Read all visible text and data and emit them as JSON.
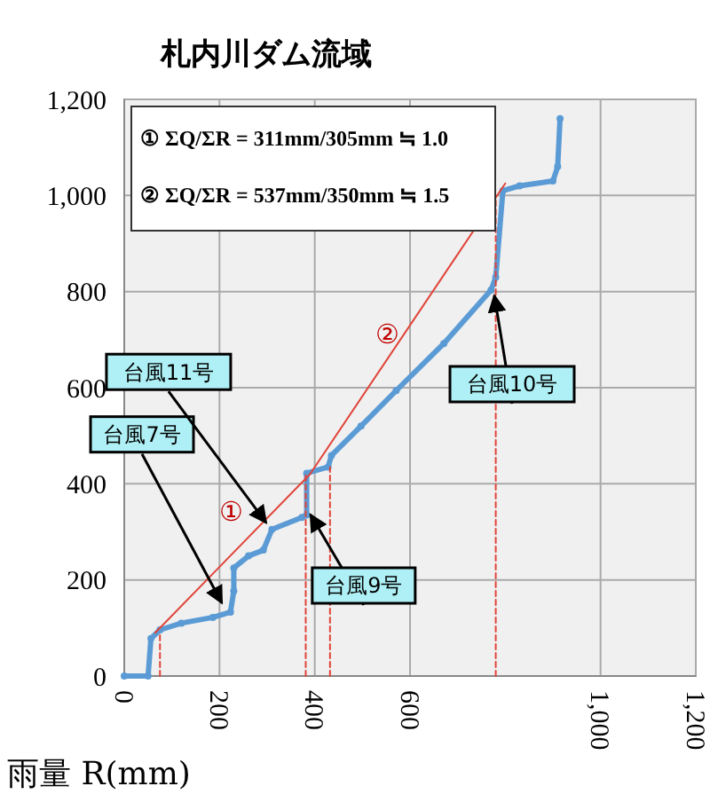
{
  "chart_data": {
    "type": "line",
    "title": "札内川ダム流域",
    "xlabel": "雨量 R(mm)",
    "xlim": [
      0,
      1200
    ],
    "xticks": [
      0,
      200,
      400,
      600,
      {
        "value": 1000,
        "label": "1,000"
      },
      {
        "value": 1200,
        "label": "1,200"
      }
    ],
    "ylim": [
      0,
      1200
    ],
    "yticks": [
      0,
      200,
      400,
      600,
      800,
      {
        "value": 1000,
        "label": "1,000"
      },
      {
        "value": 1200,
        "label": "1,200"
      }
    ],
    "grid": true,
    "series": [
      {
        "color": "#5b9bd5",
        "marker": "circle",
        "x": [
          0,
          50,
          56,
          75,
          120,
          186,
          223,
          230,
          230,
          261,
          292,
          310,
          373,
          383,
          383,
          428,
          435,
          497,
          571,
          671,
          770,
          780,
          795,
          830,
          900,
          910,
          915
        ],
        "values": [
          0,
          0,
          78,
          96,
          110,
          122,
          133,
          177,
          225,
          250,
          262,
          305,
          330,
          335,
          422,
          435,
          459,
          520,
          594,
          692,
          803,
          830,
          1010,
          1020,
          1030,
          1060,
          1160
        ]
      },
      {
        "color": "#e0453a",
        "marker": "none",
        "line_style": "solid",
        "x": [
          65,
          390,
          800
        ],
        "values": [
          90,
          420,
          1025
        ]
      },
      {
        "type": "line",
        "color": "#e0453a",
        "marker": "none",
        "line_style": "dashed",
        "x": [
          75,
          75
        ],
        "values": [
          0,
          90
        ]
      },
      {
        "type": "line",
        "color": "#e0453a",
        "marker": "none",
        "line_style": "dashed",
        "x": [
          381,
          381
        ],
        "values": [
          0,
          422
        ]
      },
      {
        "type": "line",
        "color": "#e0453a",
        "marker": "none",
        "line_style": "dashed",
        "x": [
          432,
          432
        ],
        "values": [
          0,
          435
        ]
      },
      {
        "type": "line",
        "color": "#e0453a",
        "marker": "none",
        "line_style": "dashed",
        "x": [
          780,
          780
        ],
        "values": [
          0,
          1000
        ]
      }
    ],
    "annotations": [
      "① ΣQ/ΣR = 311mm/305mm ≒ 1.0",
      "② ΣQ/ΣR = 537mm/350mm ≒ 1.5",
      {
        "text": "台風7号",
        "x": 205,
        "y": 152
      },
      {
        "text": "台風11号",
        "x": 298,
        "y": 319
      },
      {
        "text": "台風9号",
        "x": 391,
        "y": 336
      },
      {
        "text": "台風10号",
        "x": 777,
        "y": 792
      },
      "①",
      "②"
    ]
  }
}
